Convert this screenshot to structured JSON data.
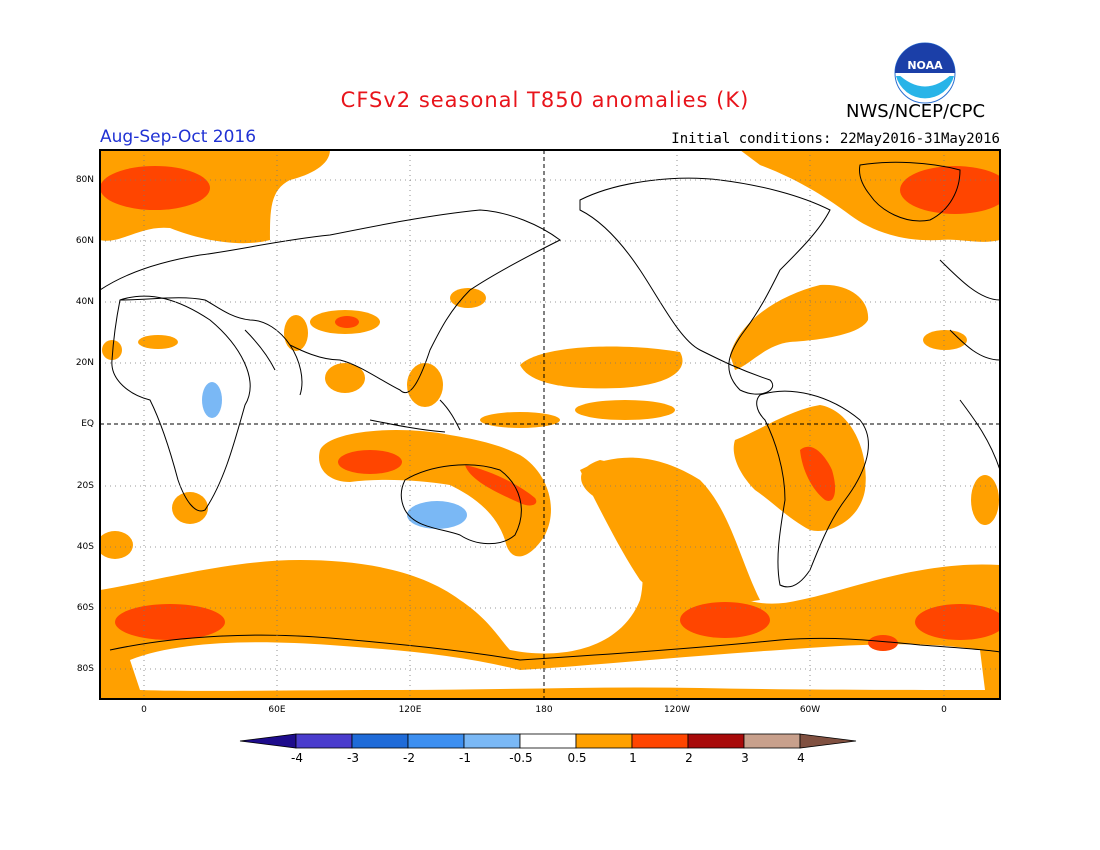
{
  "title": "CFSv2 seasonal T850 anomalies (K)",
  "season": "Aug-Sep-Oct 2016",
  "initial_conditions": "Initial conditions: 22May2016-31May2016",
  "agency": "NWS/NCEP/CPC",
  "logo_text": "NOAA",
  "lat_labels": [
    "80N",
    "60N",
    "40N",
    "20N",
    "EQ",
    "20S",
    "40S",
    "60S",
    "80S"
  ],
  "lon_labels": [
    "0",
    "60E",
    "120E",
    "180",
    "120W",
    "60W",
    "0"
  ],
  "colorbar": {
    "labels": [
      "-4",
      "-3",
      "-2",
      "-1",
      "-0.5",
      "0.5",
      "1",
      "2",
      "3",
      "4"
    ],
    "colors": [
      "#1e0c8c",
      "#4a3ccd",
      "#1f6bd8",
      "#3d8ff0",
      "#7ab8f5",
      "#ffffff",
      "#ffa000",
      "#ff4500",
      "#a80a0a",
      "#c8a08c",
      "#805040"
    ]
  }
}
